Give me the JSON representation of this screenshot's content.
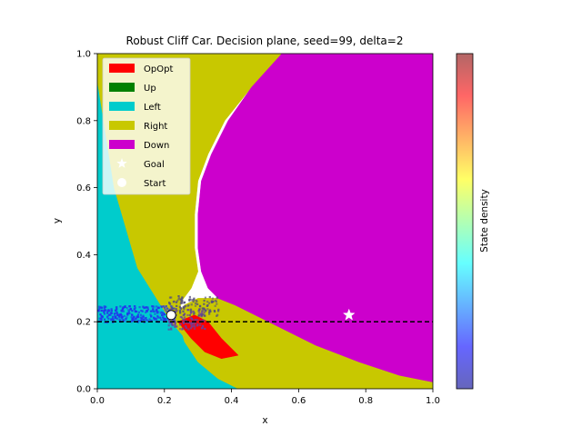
{
  "chart_data": {
    "type": "heatmap",
    "title": "Robust Cliff Car. Decision plane, seed=99, delta=2",
    "xlabel": "x",
    "ylabel": "y",
    "xlim": [
      0.0,
      1.0
    ],
    "ylim": [
      0.0,
      1.0
    ],
    "xticks": [
      "0.0",
      "0.2",
      "0.4",
      "0.6",
      "0.8",
      "1.0"
    ],
    "yticks": [
      "0.0",
      "0.2",
      "0.4",
      "0.6",
      "0.8",
      "1.0"
    ],
    "grid": false,
    "legend_position": "top-left",
    "actions": [
      {
        "name": "OpOpt",
        "color": "#ff0000"
      },
      {
        "name": "Up",
        "color": "#008000"
      },
      {
        "name": "Left",
        "color": "#00cccc"
      },
      {
        "name": "Right",
        "color": "#c8c800"
      },
      {
        "name": "Down",
        "color": "#cc00cc"
      }
    ],
    "regions": [
      {
        "action": "Left",
        "color": "#00cccc",
        "polygon": [
          [
            0,
            0
          ],
          [
            0.5,
            0
          ],
          [
            0.43,
            0.06
          ],
          [
            0.34,
            0.12
          ],
          [
            0.22,
            0.2
          ],
          [
            0.12,
            0.36
          ],
          [
            0.05,
            0.6
          ],
          [
            0,
            0.92
          ]
        ]
      },
      {
        "action": "Right",
        "color": "#c8c800",
        "polygon": [
          [
            0,
            1.0
          ],
          [
            0.55,
            1.0
          ],
          [
            0.46,
            0.9
          ],
          [
            0.38,
            0.8
          ],
          [
            0.33,
            0.7
          ],
          [
            0.3,
            0.62
          ],
          [
            0.29,
            0.52
          ],
          [
            0.29,
            0.42
          ],
          [
            0.3,
            0.35
          ],
          [
            0.28,
            0.3
          ],
          [
            0.25,
            0.26
          ],
          [
            0.24,
            0.21
          ],
          [
            0.26,
            0.14
          ],
          [
            0.3,
            0.08
          ],
          [
            0.36,
            0.03
          ],
          [
            0.42,
            0
          ],
          [
            0.5,
            0
          ],
          [
            0.43,
            0.06
          ],
          [
            0.34,
            0.12
          ],
          [
            0.22,
            0.2
          ],
          [
            0.12,
            0.36
          ],
          [
            0.05,
            0.6
          ],
          [
            0,
            0.92
          ]
        ]
      },
      {
        "action": "Right",
        "color": "#c8c800",
        "polygon": [
          [
            0.22,
            0.2
          ],
          [
            0.27,
            0.14
          ],
          [
            0.34,
            0.08
          ],
          [
            0.42,
            0.03
          ],
          [
            0.5,
            0
          ],
          [
            1.0,
            0
          ],
          [
            1.0,
            0.02
          ],
          [
            0.9,
            0.04
          ],
          [
            0.78,
            0.08
          ],
          [
            0.65,
            0.13
          ],
          [
            0.55,
            0.18
          ],
          [
            0.47,
            0.22
          ],
          [
            0.41,
            0.25
          ],
          [
            0.36,
            0.27
          ],
          [
            0.3,
            0.27
          ],
          [
            0.26,
            0.25
          ]
        ]
      },
      {
        "action": "Down",
        "color": "#cc00cc",
        "polygon": [
          [
            0.55,
            1.0
          ],
          [
            1.0,
            1.0
          ],
          [
            1.0,
            0.02
          ],
          [
            0.9,
            0.04
          ],
          [
            0.78,
            0.08
          ],
          [
            0.65,
            0.13
          ],
          [
            0.55,
            0.18
          ],
          [
            0.47,
            0.22
          ],
          [
            0.41,
            0.25
          ],
          [
            0.36,
            0.27
          ],
          [
            0.33,
            0.3
          ],
          [
            0.31,
            0.35
          ],
          [
            0.3,
            0.42
          ],
          [
            0.3,
            0.52
          ],
          [
            0.31,
            0.62
          ],
          [
            0.34,
            0.7
          ],
          [
            0.39,
            0.8
          ],
          [
            0.46,
            0.9
          ]
        ]
      },
      {
        "action": "OpOpt",
        "color": "#ff0000",
        "polygon": [
          [
            0.24,
            0.2
          ],
          [
            0.29,
            0.22
          ],
          [
            0.33,
            0.2
          ],
          [
            0.37,
            0.15
          ],
          [
            0.42,
            0.1
          ],
          [
            0.37,
            0.09
          ],
          [
            0.32,
            0.11
          ],
          [
            0.28,
            0.15
          ]
        ]
      }
    ],
    "path_y": 0.2,
    "goal": {
      "label": "Goal",
      "x": 0.75,
      "y": 0.22
    },
    "start": {
      "label": "Start",
      "x": 0.22,
      "y": 0.22
    },
    "density_clusters": [
      {
        "x": [
          0.0,
          0.23
        ],
        "y": [
          0.19,
          0.26
        ],
        "color": "#2233ee"
      },
      {
        "x": [
          0.21,
          0.32
        ],
        "y": [
          0.18,
          0.24
        ],
        "color": "#6a40a0"
      },
      {
        "x": [
          0.21,
          0.36
        ],
        "y": [
          0.22,
          0.28
        ],
        "color": "#56507a"
      }
    ],
    "colorbar": {
      "label": "State density",
      "colormap": "jet"
    }
  }
}
